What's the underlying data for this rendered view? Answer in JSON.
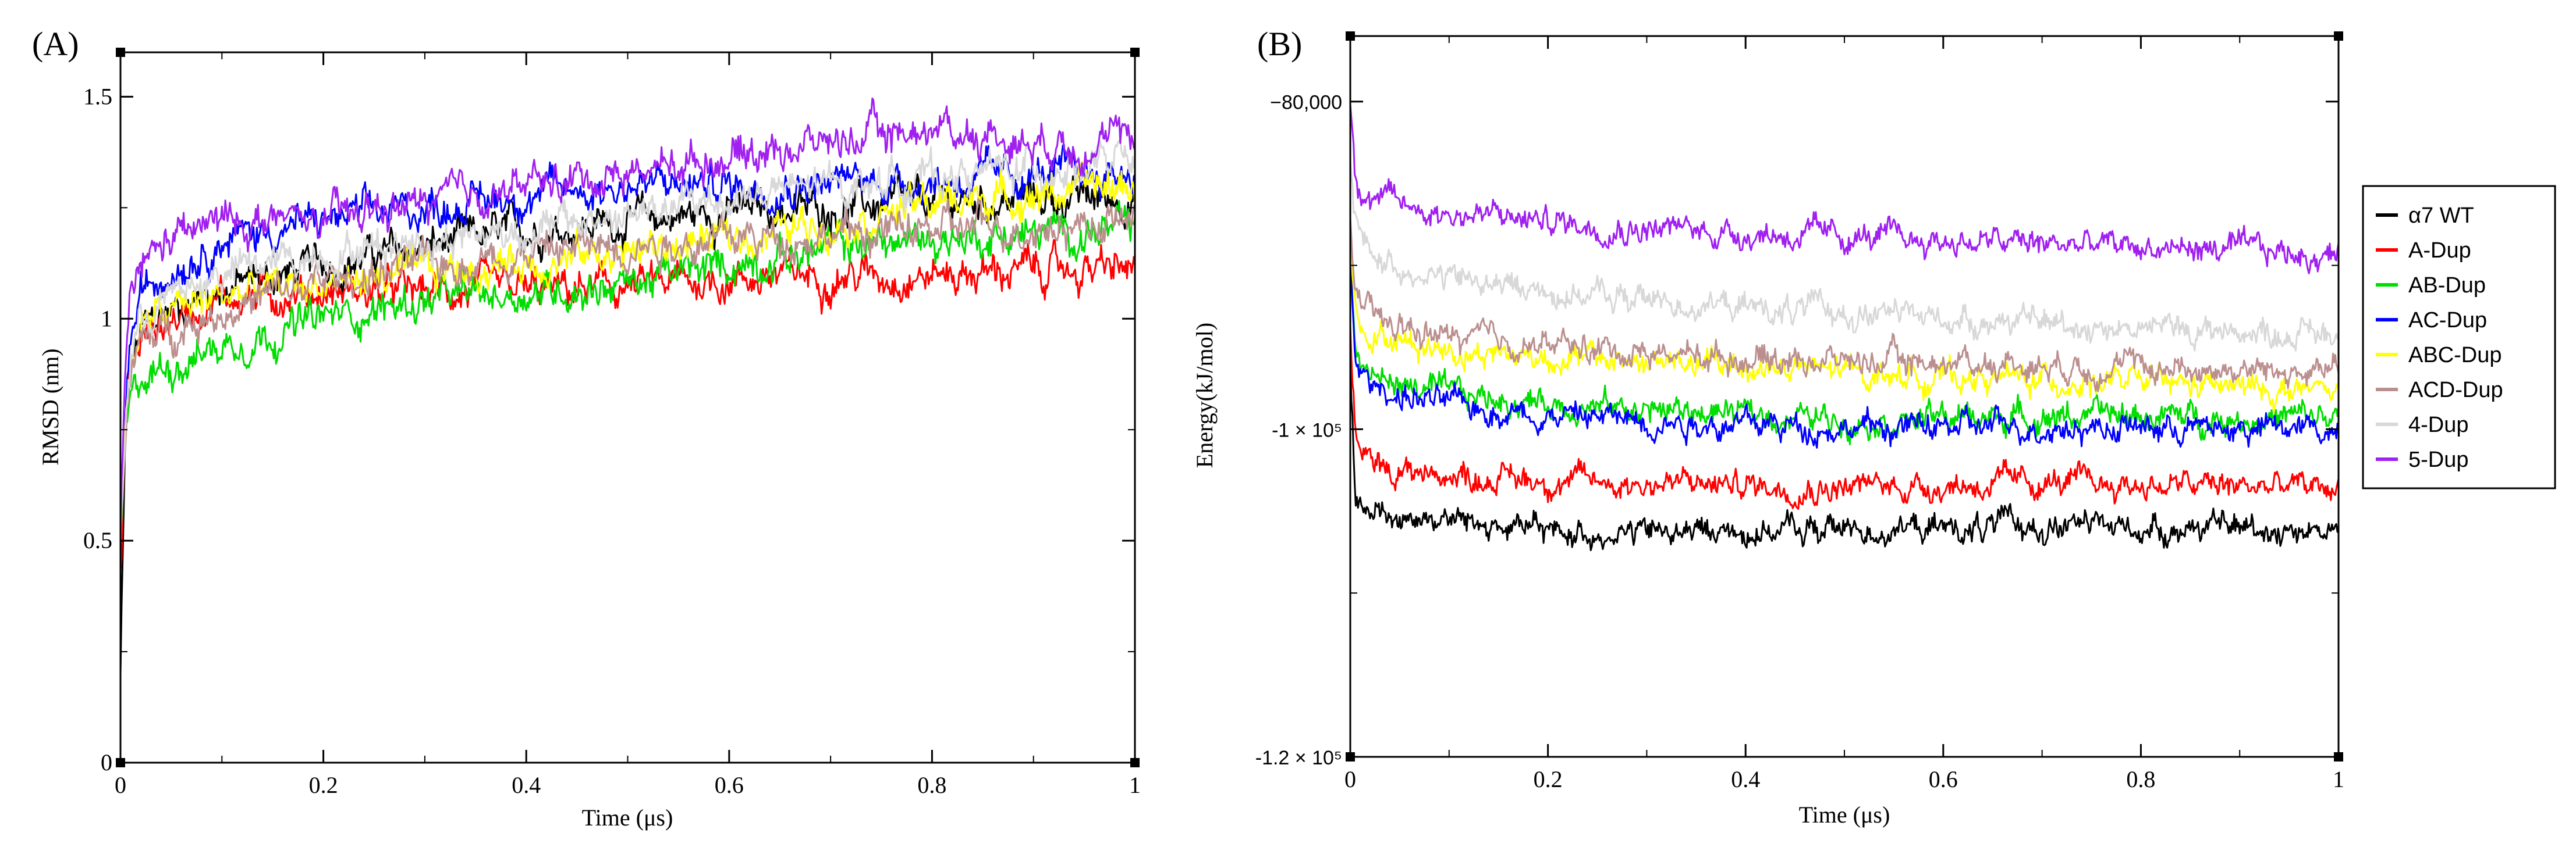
{
  "figure": {
    "panel_a_label": "(A)",
    "panel_b_label": "(B)"
  },
  "chart_data": [
    {
      "type": "line",
      "title": "",
      "xlabel": "Time (μs)",
      "ylabel": "RMSD (nm)",
      "xlim": [
        0,
        1
      ],
      "ylim": [
        0,
        1.6
      ],
      "xticks": [
        0,
        0.2,
        0.4,
        0.6,
        0.8,
        1
      ],
      "xtick_labels": [
        "0",
        "0.2",
        "0.4",
        "0.6",
        "0.8",
        "1"
      ],
      "yticks": [
        0,
        0.5,
        1,
        1.5
      ],
      "ytick_labels": [
        "0",
        "0.5",
        "1",
        "1.5"
      ],
      "grid": false,
      "legend": "none",
      "x": [
        0,
        0.005,
        0.01,
        0.02,
        0.05,
        0.1,
        0.2,
        0.3,
        0.4,
        0.5,
        0.6,
        0.7,
        0.8,
        0.9,
        1.0
      ],
      "series": [
        {
          "name": "α7 WT",
          "color": "#000000",
          "values": [
            0.2,
            0.75,
            0.88,
            0.97,
            1.02,
            1.07,
            1.12,
            1.16,
            1.2,
            1.22,
            1.24,
            1.25,
            1.26,
            1.27,
            1.27
          ]
        },
        {
          "name": "A-Dup",
          "color": "#ff0000",
          "values": [
            0.4,
            0.78,
            0.88,
            0.95,
            1.0,
            1.05,
            1.06,
            1.06,
            1.06,
            1.07,
            1.09,
            1.1,
            1.1,
            1.11,
            1.11
          ]
        },
        {
          "name": "AB-Dup",
          "color": "#00dd00",
          "values": [
            0.5,
            0.72,
            0.8,
            0.86,
            0.9,
            0.94,
            1.0,
            1.04,
            1.06,
            1.08,
            1.12,
            1.16,
            1.18,
            1.19,
            1.2
          ]
        },
        {
          "name": "AC-Dup",
          "color": "#0000ff",
          "values": [
            0.5,
            0.82,
            0.95,
            1.05,
            1.12,
            1.18,
            1.22,
            1.25,
            1.28,
            1.3,
            1.3,
            1.31,
            1.31,
            1.32,
            1.33
          ]
        },
        {
          "name": "ABC-Dup",
          "color": "#ffff00",
          "values": [
            0.5,
            0.78,
            0.9,
            0.98,
            1.02,
            1.05,
            1.08,
            1.1,
            1.13,
            1.15,
            1.18,
            1.22,
            1.26,
            1.28,
            1.3
          ]
        },
        {
          "name": "ACD-Dup",
          "color": "#bc8f8f",
          "values": [
            0.5,
            0.76,
            0.87,
            0.94,
            0.98,
            1.02,
            1.08,
            1.12,
            1.15,
            1.17,
            1.18,
            1.19,
            1.2,
            1.21,
            1.22
          ]
        },
        {
          "name": "4-Dup",
          "color": "#d8d8d8",
          "values": [
            0.5,
            0.78,
            0.92,
            1.0,
            1.05,
            1.1,
            1.15,
            1.18,
            1.2,
            1.23,
            1.27,
            1.3,
            1.32,
            1.34,
            1.35
          ]
        },
        {
          "name": "5-Dup",
          "color": "#a020f0",
          "values": [
            0.5,
            0.9,
            1.03,
            1.12,
            1.18,
            1.22,
            1.22,
            1.26,
            1.3,
            1.33,
            1.37,
            1.4,
            1.43,
            1.4,
            1.4
          ]
        }
      ]
    },
    {
      "type": "line",
      "title": "",
      "xlabel": "Time (μs)",
      "ylabel": "Energy(kJ/mol)",
      "xlim": [
        0,
        1
      ],
      "ylim": [
        -120000,
        -76000
      ],
      "xticks": [
        0,
        0.2,
        0.4,
        0.6,
        0.8,
        1
      ],
      "xtick_labels": [
        "0",
        "0.2",
        "0.4",
        "0.6",
        "0.8",
        "1"
      ],
      "yticks": [
        -120000,
        -100000,
        -80000
      ],
      "ytick_labels": [
        "-1.2 × 10⁵",
        "-1 × 10⁵",
        "−80,000"
      ],
      "grid": false,
      "legend": "right",
      "x": [
        0,
        0.005,
        0.01,
        0.02,
        0.05,
        0.1,
        0.2,
        0.3,
        0.4,
        0.5,
        0.6,
        0.7,
        0.8,
        0.9,
        1.0
      ],
      "series": [
        {
          "name": "α7 WT",
          "color": "#000000",
          "values": [
            -96000,
            -103500,
            -104500,
            -105000,
            -105300,
            -105500,
            -106300,
            -106300,
            -106200,
            -106100,
            -106100,
            -105900,
            -106000,
            -106000,
            -106100
          ]
        },
        {
          "name": "A-Dup",
          "color": "#ff0000",
          "values": [
            -94000,
            -100500,
            -101500,
            -102100,
            -102500,
            -102800,
            -103100,
            -103300,
            -103400,
            -103500,
            -103400,
            -103300,
            -103400,
            -103500,
            -103600
          ]
        },
        {
          "name": "AB-Dup",
          "color": "#00dd00",
          "values": [
            -89000,
            -94500,
            -95800,
            -96700,
            -97300,
            -97900,
            -98400,
            -98800,
            -99100,
            -99400,
            -99300,
            -99200,
            -99200,
            -99300,
            -99300
          ]
        },
        {
          "name": "AC-Dup",
          "color": "#0000ff",
          "values": [
            -90000,
            -95500,
            -96500,
            -97300,
            -97900,
            -98500,
            -99100,
            -99400,
            -99700,
            -99900,
            -99900,
            -99800,
            -99900,
            -100000,
            -100000
          ]
        },
        {
          "name": "ABC-Dup",
          "color": "#ffff00",
          "values": [
            -88000,
            -92000,
            -93200,
            -94000,
            -94600,
            -95100,
            -95600,
            -95900,
            -96200,
            -96500,
            -96800,
            -97000,
            -97200,
            -97500,
            -97800
          ]
        },
        {
          "name": "ACD-Dup",
          "color": "#bc8f8f",
          "values": [
            -87000,
            -91000,
            -92300,
            -93200,
            -93900,
            -94400,
            -94900,
            -95300,
            -95600,
            -95800,
            -95900,
            -96000,
            -96200,
            -96400,
            -96600
          ]
        },
        {
          "name": "4-Dup",
          "color": "#d8d8d8",
          "values": [
            -84000,
            -87000,
            -88200,
            -89200,
            -90100,
            -90800,
            -91600,
            -92100,
            -92600,
            -92900,
            -93200,
            -93500,
            -93800,
            -94000,
            -94200
          ]
        },
        {
          "name": "5-Dup",
          "color": "#a020f0",
          "values": [
            -80000,
            -84000,
            -85000,
            -85700,
            -86300,
            -86800,
            -87300,
            -87700,
            -88000,
            -88300,
            -88500,
            -88700,
            -88900,
            -89100,
            -89400
          ]
        }
      ]
    }
  ]
}
